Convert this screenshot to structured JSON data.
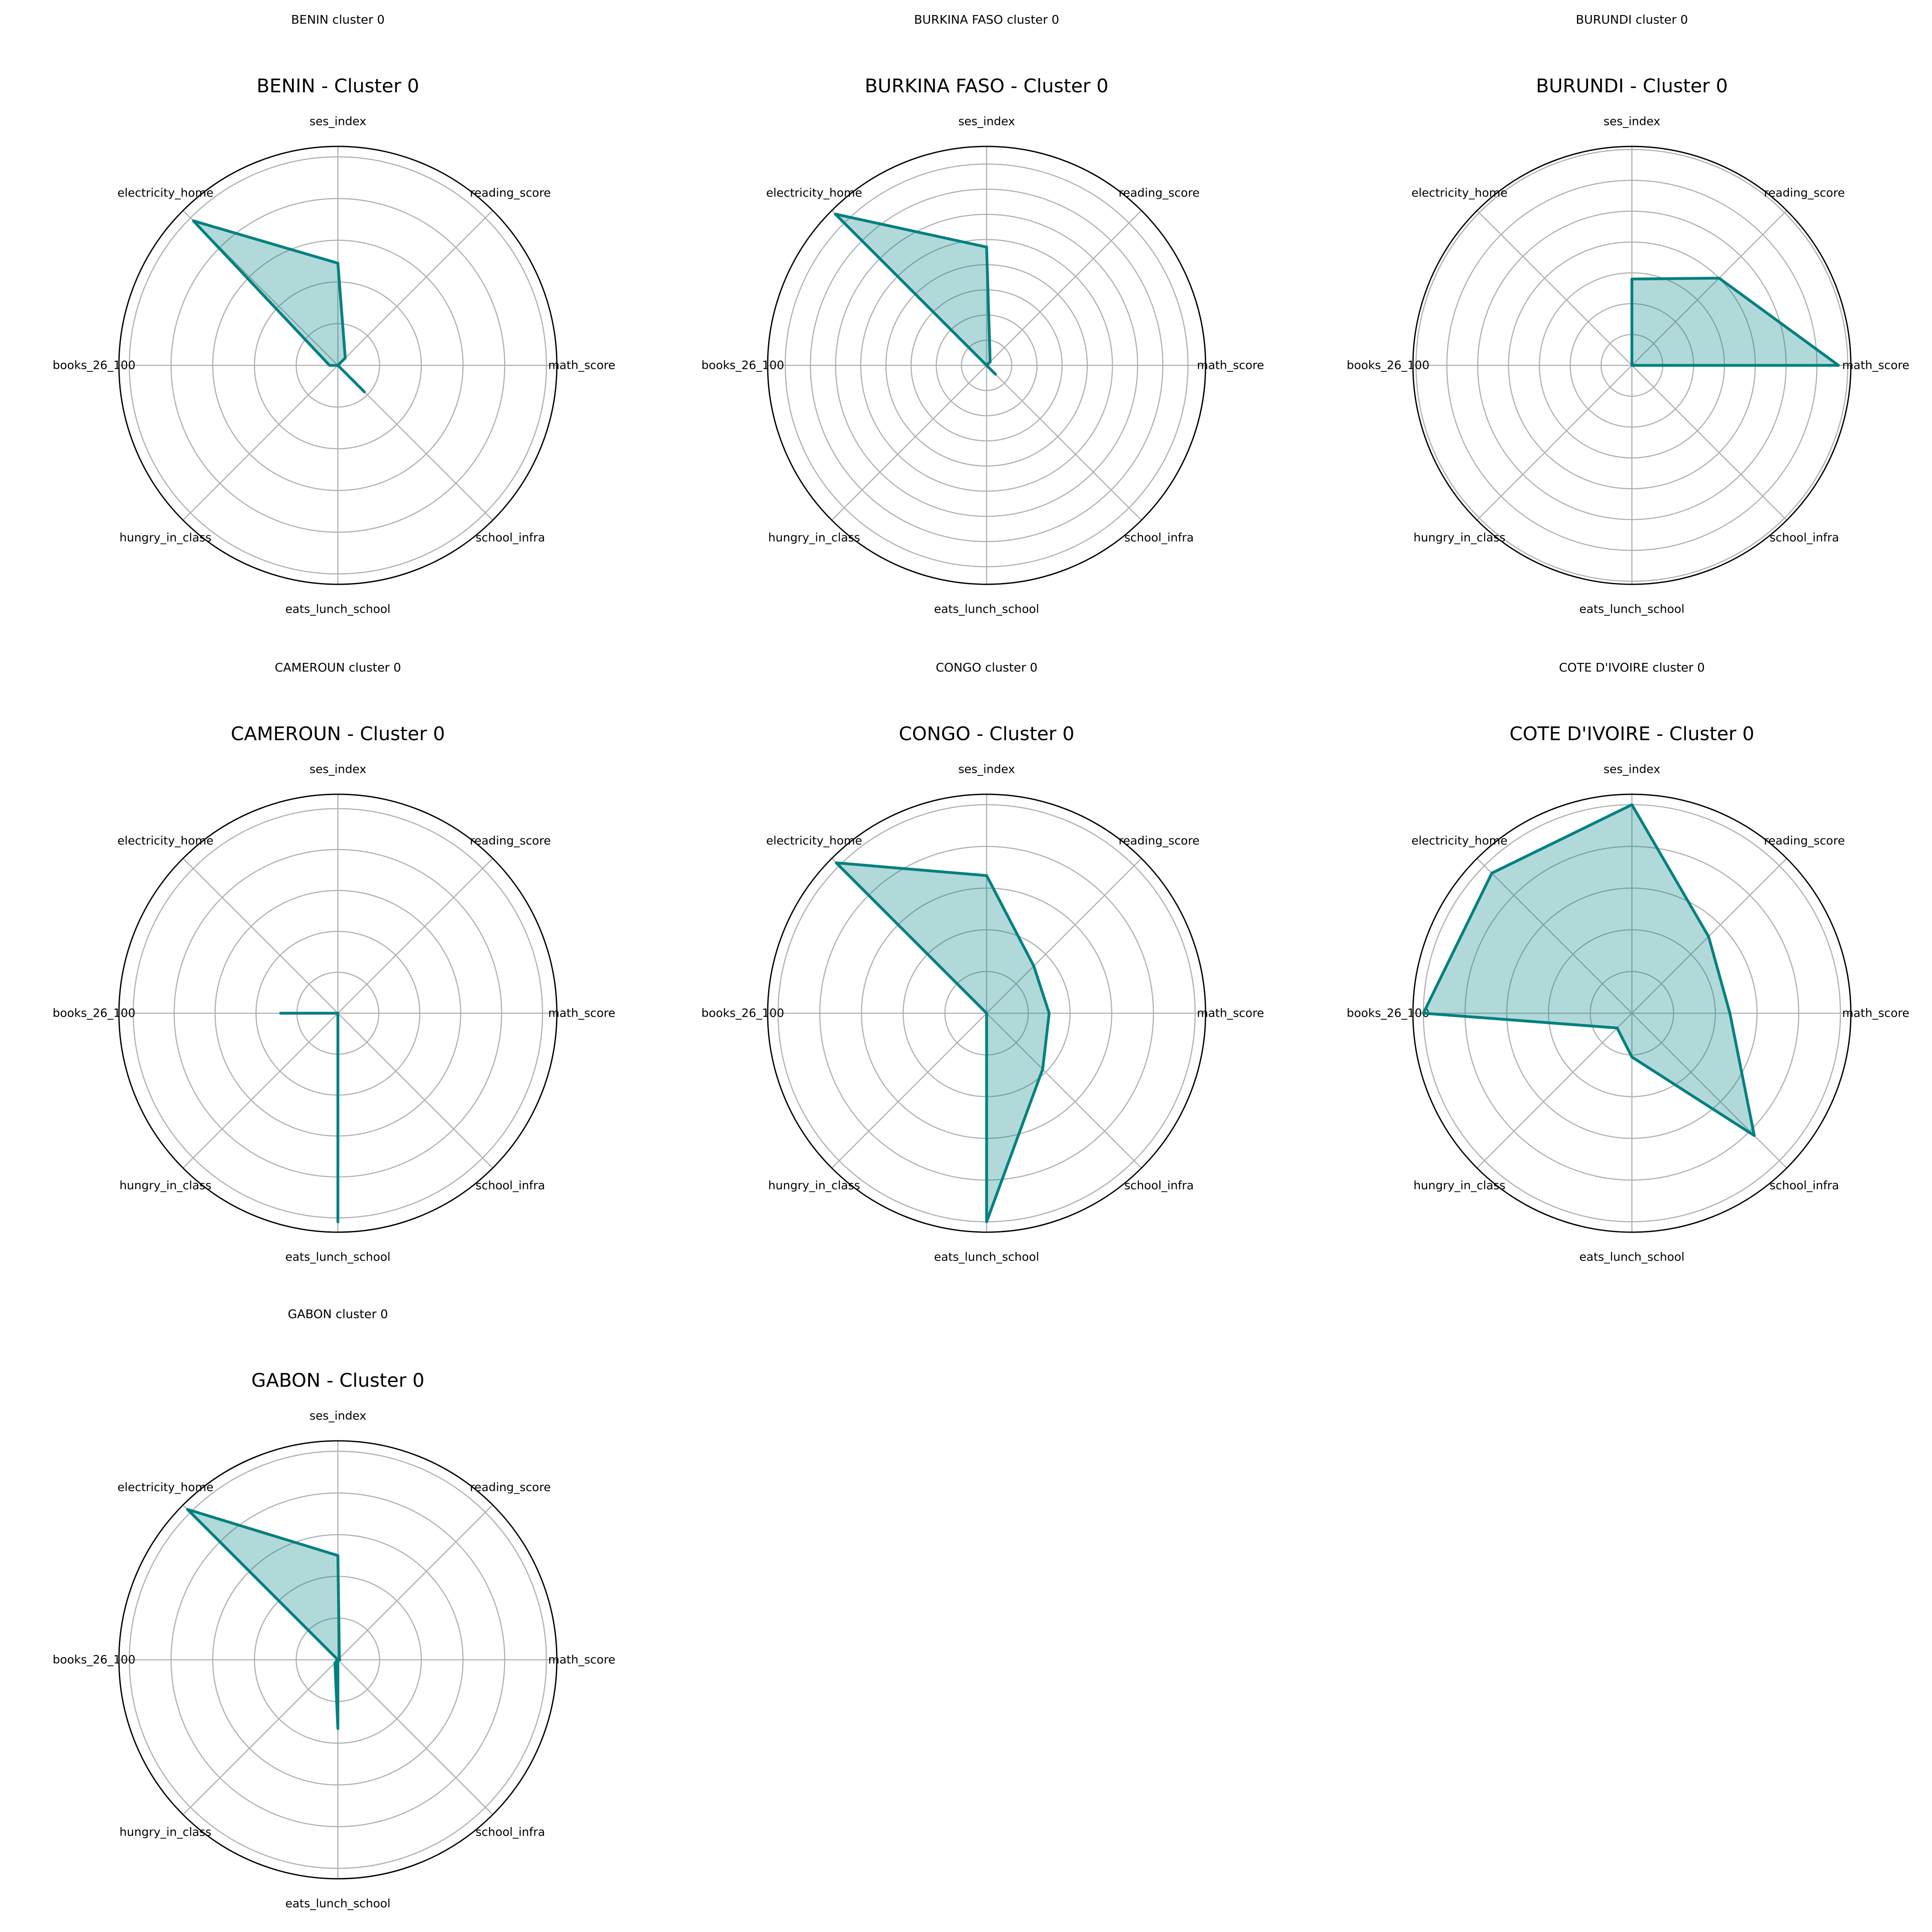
{
  "chart_data": {
    "type": "radar",
    "axes": [
      "ses_index",
      "reading_score",
      "math_score",
      "school_infra",
      "eats_lunch_school",
      "hungry_in_class",
      "books_26_100",
      "electricity_home"
    ],
    "line_color": "#008080",
    "fill_color": "#008080",
    "fill_alpha": 0.3,
    "grid_color": "#b0b0b0",
    "panels": [
      {
        "small_title": "BENIN cluster 0",
        "title": "BENIN - Cluster 0",
        "rticks": [
          0.2,
          0.4,
          0.6,
          0.8,
          1.0
        ],
        "rmax": 1.05,
        "values": [
          0.49,
          0.05,
          0.0,
          0.18,
          0.0,
          0.0,
          0.04,
          0.98
        ]
      },
      {
        "small_title": "BURKINA FASO cluster 0",
        "title": "BURKINA FASO - Cluster 0",
        "rticks": [
          0.1,
          0.2,
          0.3,
          0.4,
          0.5,
          0.6,
          0.7,
          0.8
        ],
        "rmax": 0.87,
        "values": [
          0.47,
          0.02,
          0.0,
          0.05,
          0.0,
          0.0,
          0.0,
          0.85
        ]
      },
      {
        "small_title": "BURUNDI cluster 0",
        "title": "BURUNDI - Cluster 0",
        "rticks": [
          0.1,
          0.2,
          0.3,
          0.4,
          0.5,
          0.6,
          0.7
        ],
        "rmax": 0.71,
        "values": [
          0.28,
          0.4,
          0.67,
          0.0,
          0.0,
          0.0,
          0.0,
          0.0
        ]
      },
      {
        "small_title": "CAMEROUN cluster 0",
        "title": "CAMEROUN - Cluster 0",
        "rticks": [
          0.2,
          0.4,
          0.6,
          0.8,
          1.0
        ],
        "rmax": 1.07,
        "values": [
          0.0,
          0.0,
          0.0,
          0.0,
          1.02,
          0.0,
          0.28,
          0.0
        ]
      },
      {
        "small_title": "CONGO cluster 0",
        "title": "CONGO - Cluster 0",
        "rticks": [
          0.2,
          0.4,
          0.6,
          0.8,
          1.0
        ],
        "rmax": 1.05,
        "values": [
          0.66,
          0.32,
          0.3,
          0.38,
          1.0,
          0.0,
          0.0,
          1.02
        ]
      },
      {
        "small_title": "COTE D'IVOIRE cluster 0",
        "title": "COTE D'IVOIRE - Cluster 0",
        "rticks": [
          0.2,
          0.4,
          0.6,
          0.8,
          1.0
        ],
        "rmax": 1.05,
        "values": [
          1.0,
          0.52,
          0.47,
          0.83,
          0.21,
          0.1,
          1.0,
          0.95
        ]
      },
      {
        "small_title": "GABON cluster 0",
        "title": "GABON - Cluster 0",
        "rticks": [
          0.2,
          0.4,
          0.6,
          0.8,
          1.0
        ],
        "rmax": 1.05,
        "values": [
          0.5,
          0.01,
          0.01,
          0.0,
          0.33,
          0.02,
          0.0,
          1.02
        ]
      }
    ]
  }
}
